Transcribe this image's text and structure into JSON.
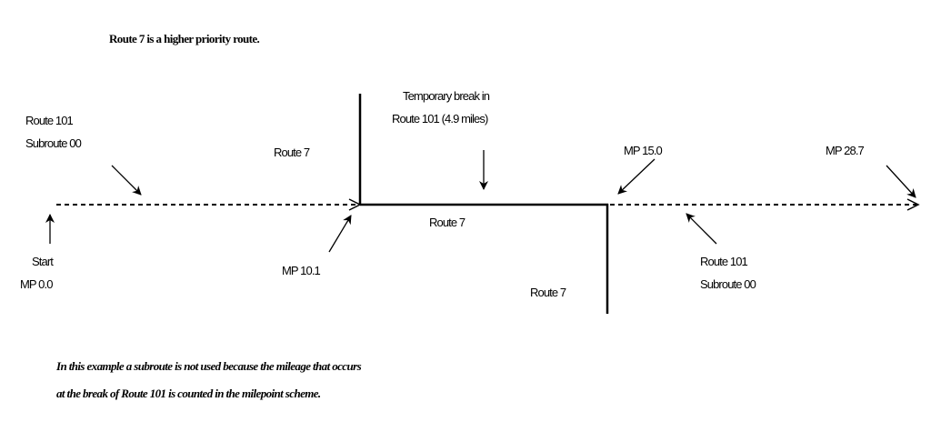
{
  "title": "Route 7 is a higher priority route.",
  "labels": {
    "route101_left_line1": "Route 101",
    "route101_left_line2": "Subroute 00",
    "route7_upper": "Route 7",
    "temp_break_line1": "Temporary break in",
    "temp_break_line2": "Route 101 (4.9 miles)",
    "route7_middle": "Route 7",
    "route7_lower": "Route 7",
    "mp_15": "MP 15.0",
    "mp_28": "MP 28.7",
    "start": "Start",
    "mp_0": "MP 0.0",
    "mp_10": "MP 10.1",
    "route101_right_line1": "Route 101",
    "route101_right_line2": "Subroute 00"
  },
  "note": {
    "line1": "In this example a subroute is not used because the mileage that occurs",
    "line2": "at the break of Route 101 is counted in the milepoint scheme."
  }
}
